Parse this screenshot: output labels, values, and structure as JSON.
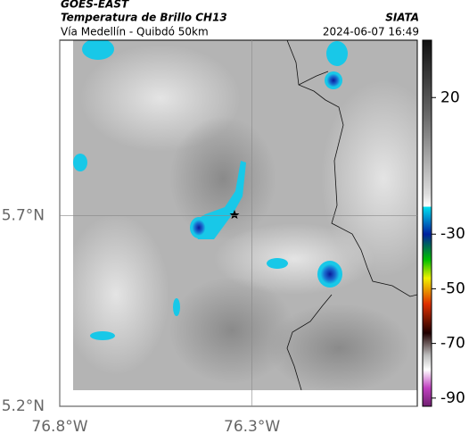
{
  "header": {
    "source": "GOES-EAST",
    "product": "Temperatura de Brillo CH13",
    "org": "SIATA",
    "location": "Vía Medellín - Quibdó 50km",
    "datetime": "2024-06-07 16:49"
  },
  "map": {
    "xlim": [
      -76.8,
      -75.87
    ],
    "ylim": [
      5.2,
      6.16
    ],
    "xticks": [
      {
        "value": -76.8,
        "label": "76.8°W"
      },
      {
        "value": -76.3,
        "label": "76.3°W"
      }
    ],
    "yticks": [
      {
        "value": 5.2,
        "label": "5.2°N"
      },
      {
        "value": 5.7,
        "label": "5.7°N"
      }
    ]
  },
  "colorbar": {
    "lim": [
      -93,
      41
    ],
    "ticks": [
      20,
      -30,
      -50,
      -70,
      -90
    ]
  }
}
